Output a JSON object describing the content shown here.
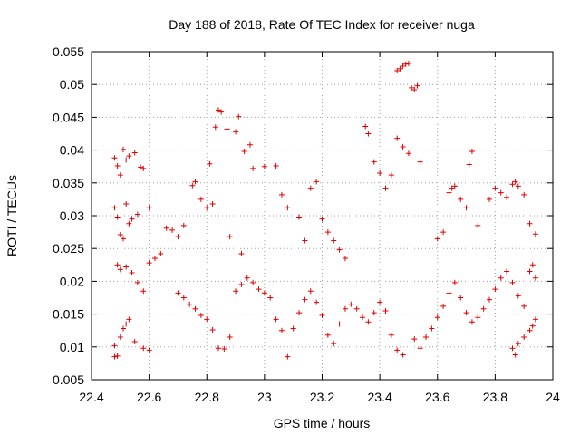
{
  "chart_data": {
    "type": "scatter",
    "title": "Day 188 of 2018, Rate Of TEC Index for receiver nuga",
    "xlabel": "GPS time / hours",
    "ylabel": "ROTI / TECUs",
    "xlim": [
      22.4,
      24.0
    ],
    "ylim": [
      0.005,
      0.055
    ],
    "x_ticks": [
      "22.4",
      "22.6",
      "22.8",
      "23",
      "23.2",
      "23.4",
      "23.6",
      "23.8",
      "24"
    ],
    "y_ticks": [
      "0.005",
      "0.01",
      "0.015",
      "0.02",
      "0.025",
      "0.03",
      "0.035",
      "0.04",
      "0.045",
      "0.05",
      "0.055"
    ],
    "grid": true,
    "marker": "+",
    "series_color": "#e00000",
    "points": [
      [
        22.48,
        0.0388
      ],
      [
        22.49,
        0.0376
      ],
      [
        22.5,
        0.0362
      ],
      [
        22.51,
        0.0401
      ],
      [
        22.52,
        0.0385
      ],
      [
        22.53,
        0.0391
      ],
      [
        22.55,
        0.0396
      ],
      [
        22.57,
        0.0374
      ],
      [
        22.58,
        0.0372
      ],
      [
        22.48,
        0.0312
      ],
      [
        22.49,
        0.0298
      ],
      [
        22.5,
        0.0271
      ],
      [
        22.51,
        0.0265
      ],
      [
        22.52,
        0.0318
      ],
      [
        22.53,
        0.0288
      ],
      [
        22.54,
        0.0295
      ],
      [
        22.56,
        0.0302
      ],
      [
        22.6,
        0.0312
      ],
      [
        22.48,
        0.0085
      ],
      [
        22.49,
        0.0086
      ],
      [
        22.48,
        0.0102
      ],
      [
        22.5,
        0.0115
      ],
      [
        22.51,
        0.0128
      ],
      [
        22.52,
        0.0135
      ],
      [
        22.53,
        0.0142
      ],
      [
        22.55,
        0.0108
      ],
      [
        22.58,
        0.0098
      ],
      [
        22.6,
        0.0095
      ],
      [
        22.49,
        0.0225
      ],
      [
        22.5,
        0.0218
      ],
      [
        22.52,
        0.0222
      ],
      [
        22.54,
        0.0213
      ],
      [
        22.56,
        0.0198
      ],
      [
        22.58,
        0.0185
      ],
      [
        22.6,
        0.0228
      ],
      [
        22.62,
        0.0235
      ],
      [
        22.64,
        0.0242
      ],
      [
        22.66,
        0.0281
      ],
      [
        22.68,
        0.0278
      ],
      [
        22.7,
        0.0268
      ],
      [
        22.72,
        0.0285
      ],
      [
        22.75,
        0.0346
      ],
      [
        22.76,
        0.0352
      ],
      [
        22.78,
        0.0325
      ],
      [
        22.8,
        0.0312
      ],
      [
        22.82,
        0.0318
      ],
      [
        22.84,
        0.0461
      ],
      [
        22.85,
        0.0458
      ],
      [
        22.83,
        0.0435
      ],
      [
        22.87,
        0.0432
      ],
      [
        22.9,
        0.0428
      ],
      [
        22.91,
        0.0451
      ],
      [
        22.93,
        0.0398
      ],
      [
        22.95,
        0.0408
      ],
      [
        22.81,
        0.0379
      ],
      [
        22.88,
        0.0268
      ],
      [
        22.92,
        0.0242
      ],
      [
        22.96,
        0.0372
      ],
      [
        23.0,
        0.0375
      ],
      [
        23.04,
        0.0376
      ],
      [
        23.06,
        0.0332
      ],
      [
        23.08,
        0.0312
      ],
      [
        22.7,
        0.0182
      ],
      [
        22.72,
        0.0175
      ],
      [
        22.74,
        0.0165
      ],
      [
        22.76,
        0.0158
      ],
      [
        22.78,
        0.0148
      ],
      [
        22.8,
        0.0142
      ],
      [
        22.82,
        0.0126
      ],
      [
        22.84,
        0.0098
      ],
      [
        22.86,
        0.0097
      ],
      [
        22.88,
        0.0115
      ],
      [
        22.9,
        0.0185
      ],
      [
        22.92,
        0.0195
      ],
      [
        22.94,
        0.0205
      ],
      [
        22.96,
        0.0198
      ],
      [
        22.98,
        0.0188
      ],
      [
        23.0,
        0.0182
      ],
      [
        23.02,
        0.0175
      ],
      [
        23.04,
        0.0142
      ],
      [
        23.06,
        0.0125
      ],
      [
        23.08,
        0.0085
      ],
      [
        23.1,
        0.0128
      ],
      [
        23.12,
        0.0152
      ],
      [
        23.14,
        0.0172
      ],
      [
        23.16,
        0.0185
      ],
      [
        23.18,
        0.0168
      ],
      [
        23.2,
        0.0148
      ],
      [
        23.22,
        0.0118
      ],
      [
        23.24,
        0.0105
      ],
      [
        23.26,
        0.0135
      ],
      [
        23.28,
        0.0158
      ],
      [
        23.12,
        0.0298
      ],
      [
        23.14,
        0.0262
      ],
      [
        23.16,
        0.0342
      ],
      [
        23.18,
        0.0352
      ],
      [
        23.2,
        0.0295
      ],
      [
        23.22,
        0.0275
      ],
      [
        23.24,
        0.0262
      ],
      [
        23.26,
        0.0248
      ],
      [
        23.28,
        0.0235
      ],
      [
        23.3,
        0.0165
      ],
      [
        23.32,
        0.0158
      ],
      [
        23.34,
        0.0145
      ],
      [
        23.36,
        0.0138
      ],
      [
        23.38,
        0.0152
      ],
      [
        23.4,
        0.0168
      ],
      [
        23.42,
        0.0155
      ],
      [
        23.44,
        0.0118
      ],
      [
        23.46,
        0.0095
      ],
      [
        23.48,
        0.0088
      ],
      [
        23.35,
        0.0436
      ],
      [
        23.36,
        0.0425
      ],
      [
        23.38,
        0.0382
      ],
      [
        23.4,
        0.0365
      ],
      [
        23.42,
        0.0342
      ],
      [
        23.44,
        0.0362
      ],
      [
        23.46,
        0.0418
      ],
      [
        23.48,
        0.0405
      ],
      [
        23.5,
        0.0395
      ],
      [
        23.46,
        0.0521
      ],
      [
        23.47,
        0.0524
      ],
      [
        23.48,
        0.0528
      ],
      [
        23.49,
        0.0531
      ],
      [
        23.5,
        0.0532
      ],
      [
        23.51,
        0.0495
      ],
      [
        23.52,
        0.0492
      ],
      [
        23.53,
        0.0498
      ],
      [
        23.54,
        0.0382
      ],
      [
        23.52,
        0.0112
      ],
      [
        23.54,
        0.0098
      ],
      [
        23.56,
        0.0115
      ],
      [
        23.58,
        0.0128
      ],
      [
        23.6,
        0.0145
      ],
      [
        23.62,
        0.0162
      ],
      [
        23.64,
        0.0182
      ],
      [
        23.66,
        0.0198
      ],
      [
        23.68,
        0.0175
      ],
      [
        23.7,
        0.0152
      ],
      [
        23.6,
        0.0265
      ],
      [
        23.62,
        0.0275
      ],
      [
        23.64,
        0.0335
      ],
      [
        23.65,
        0.0342
      ],
      [
        23.66,
        0.0345
      ],
      [
        23.68,
        0.0325
      ],
      [
        23.7,
        0.0312
      ],
      [
        23.72,
        0.0398
      ],
      [
        23.71,
        0.0378
      ],
      [
        23.74,
        0.0285
      ],
      [
        23.72,
        0.0138
      ],
      [
        23.74,
        0.0145
      ],
      [
        23.76,
        0.0158
      ],
      [
        23.78,
        0.0172
      ],
      [
        23.8,
        0.0188
      ],
      [
        23.82,
        0.0205
      ],
      [
        23.84,
        0.0215
      ],
      [
        23.86,
        0.0198
      ],
      [
        23.88,
        0.0178
      ],
      [
        23.9,
        0.0162
      ],
      [
        23.78,
        0.0325
      ],
      [
        23.8,
        0.0342
      ],
      [
        23.82,
        0.0335
      ],
      [
        23.84,
        0.0328
      ],
      [
        23.86,
        0.0348
      ],
      [
        23.87,
        0.0352
      ],
      [
        23.88,
        0.0345
      ],
      [
        23.9,
        0.0332
      ],
      [
        23.92,
        0.0288
      ],
      [
        23.94,
        0.0272
      ],
      [
        23.86,
        0.0098
      ],
      [
        23.87,
        0.0088
      ],
      [
        23.88,
        0.0105
      ],
      [
        23.9,
        0.0115
      ],
      [
        23.92,
        0.0125
      ],
      [
        23.93,
        0.0132
      ],
      [
        23.94,
        0.0142
      ],
      [
        23.92,
        0.0215
      ],
      [
        23.93,
        0.0225
      ],
      [
        23.94,
        0.0205
      ]
    ]
  }
}
